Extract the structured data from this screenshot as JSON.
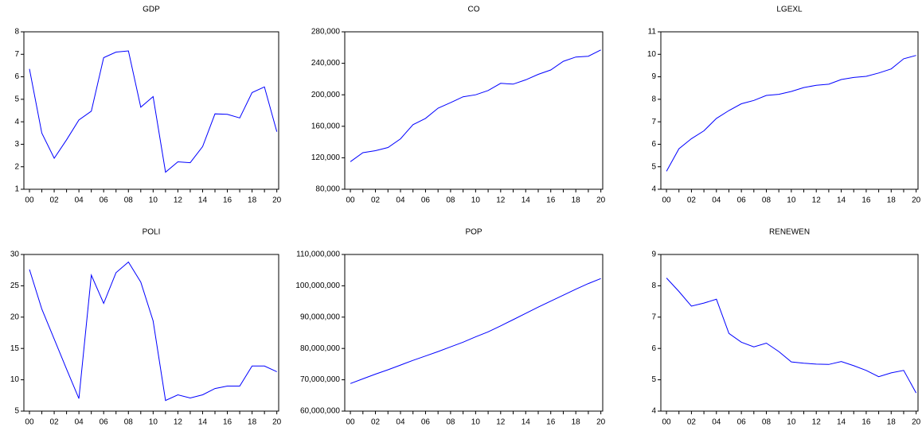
{
  "chart_data": [
    {
      "type": "line",
      "title": "GDP",
      "color": "#0000ff",
      "categories": [
        "00",
        null,
        "02",
        null,
        "04",
        null,
        "06",
        null,
        "08",
        null,
        "10",
        null,
        "12",
        null,
        "14",
        null,
        "16",
        null,
        "18",
        null,
        "20"
      ],
      "values": [
        6.35,
        3.5,
        2.38,
        3.2,
        4.08,
        4.47,
        6.85,
        7.1,
        7.15,
        4.65,
        5.12,
        1.76,
        2.22,
        2.18,
        2.9,
        4.35,
        4.33,
        4.17,
        5.3,
        5.55,
        3.56
      ],
      "ylim": [
        1,
        8
      ],
      "yticks": [
        1,
        2,
        3,
        4,
        5,
        6,
        7,
        8
      ]
    },
    {
      "type": "line",
      "title": "CO",
      "color": "#0000ff",
      "categories": [
        "00",
        null,
        "02",
        null,
        "04",
        null,
        "06",
        null,
        "08",
        null,
        "10",
        null,
        "12",
        null,
        "14",
        null,
        "16",
        null,
        "18",
        null,
        "20"
      ],
      "values": [
        115000,
        126500,
        129000,
        133000,
        144000,
        162000,
        170000,
        183000,
        190000,
        197500,
        200000,
        205500,
        214500,
        213500,
        219000,
        226000,
        231500,
        242500,
        248000,
        249000,
        257000
      ],
      "ylim": [
        80000,
        280000
      ],
      "yticks": [
        {
          "value": 80000,
          "label": "80,000"
        },
        {
          "value": 120000,
          "label": "120,000"
        },
        {
          "value": 160000,
          "label": "160,000"
        },
        {
          "value": 200000,
          "label": "200,000"
        },
        {
          "value": 240000,
          "label": "240,000"
        },
        {
          "value": 280000,
          "label": "280,000"
        }
      ]
    },
    {
      "type": "line",
      "title": "LGEXL",
      "color": "#0000ff",
      "categories": [
        "00",
        null,
        "02",
        null,
        "04",
        null,
        "06",
        null,
        "08",
        null,
        "10",
        null,
        "12",
        null,
        "14",
        null,
        "16",
        null,
        "18",
        null,
        "20"
      ],
      "values": [
        4.8,
        5.8,
        6.25,
        6.6,
        7.15,
        7.5,
        7.8,
        7.95,
        8.17,
        8.22,
        8.35,
        8.52,
        8.62,
        8.67,
        8.88,
        8.97,
        9.02,
        9.17,
        9.35,
        9.8,
        9.95
      ],
      "ylim": [
        4,
        11
      ],
      "yticks": [
        4,
        5,
        6,
        7,
        8,
        9,
        10,
        11
      ]
    },
    {
      "type": "line",
      "title": "POLI",
      "color": "#0000ff",
      "categories": [
        "00",
        null,
        "02",
        null,
        "04",
        null,
        "06",
        null,
        "08",
        null,
        "10",
        null,
        "12",
        null,
        "14",
        null,
        "16",
        null,
        "18",
        null,
        "20"
      ],
      "values": [
        27.6,
        21.3,
        16.5,
        11.7,
        7,
        26.7,
        22.2,
        27.1,
        28.8,
        25.6,
        19.4,
        6.7,
        7.6,
        7.1,
        7.6,
        8.6,
        9,
        9,
        12.2,
        12.2,
        11.3
      ],
      "ylim": [
        5,
        30
      ],
      "yticks": [
        5,
        10,
        15,
        20,
        25,
        30
      ]
    },
    {
      "type": "line",
      "title": "POP",
      "color": "#0000ff",
      "categories": [
        "00",
        null,
        "02",
        null,
        "04",
        null,
        "06",
        null,
        "08",
        null,
        "10",
        null,
        "12",
        null,
        "14",
        null,
        "16",
        null,
        "18",
        null,
        "20"
      ],
      "values": [
        68800000,
        70300000,
        71800000,
        73200000,
        74700000,
        76200000,
        77600000,
        79000000,
        80500000,
        82000000,
        83700000,
        85300000,
        87200000,
        89200000,
        91200000,
        93200000,
        95100000,
        97000000,
        98900000,
        100700000,
        102300000
      ],
      "ylim": [
        60000000,
        110000000
      ],
      "yticks": [
        {
          "value": 60000000,
          "label": "60,000,000"
        },
        {
          "value": 70000000,
          "label": "70,000,000"
        },
        {
          "value": 80000000,
          "label": "80,000,000"
        },
        {
          "value": 90000000,
          "label": "90,000,000"
        },
        {
          "value": 100000000,
          "label": "100,000,000"
        },
        {
          "value": 110000000,
          "label": "110,000,000"
        }
      ]
    },
    {
      "type": "line",
      "title": "RENEWEN",
      "color": "#0000ff",
      "categories": [
        "00",
        null,
        "02",
        null,
        "04",
        null,
        "06",
        null,
        "08",
        null,
        "10",
        null,
        "12",
        null,
        "14",
        null,
        "16",
        null,
        "18",
        null,
        "20"
      ],
      "values": [
        8.25,
        7.82,
        7.35,
        7.45,
        7.57,
        6.48,
        6.2,
        6.05,
        6.17,
        5.9,
        5.57,
        5.53,
        5.5,
        5.49,
        5.58,
        5.45,
        5.3,
        5.1,
        5.22,
        5.3,
        4.58
      ],
      "ylim": [
        4,
        9
      ],
      "yticks": [
        4,
        5,
        6,
        7,
        8,
        9
      ]
    }
  ]
}
